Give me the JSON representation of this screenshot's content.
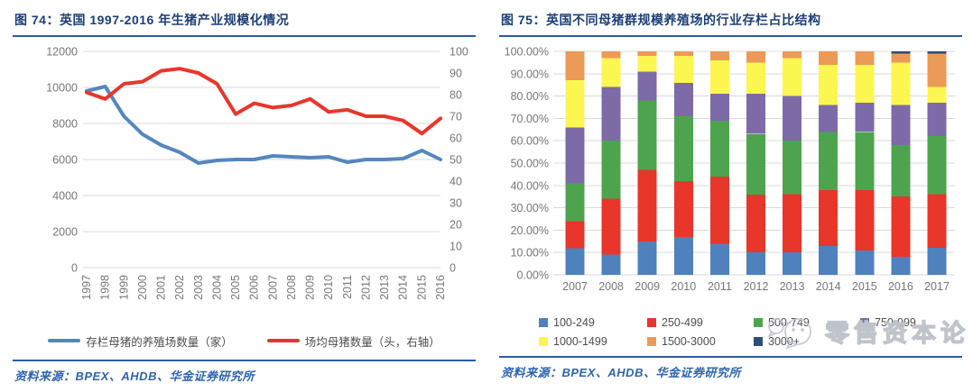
{
  "figure74": {
    "title": "图 74：英国 1997-2016 年生猪产业规模化情况",
    "source": "资料来源：BPEX、AHDB、华金证券研究所",
    "chart_data": {
      "type": "line",
      "x": [
        "1997",
        "1998",
        "1999",
        "2000",
        "2001",
        "2002",
        "2003",
        "2004",
        "2005",
        "2006",
        "2007",
        "2008",
        "2009",
        "2010",
        "2011",
        "2012",
        "2013",
        "2014",
        "2015",
        "2016"
      ],
      "left_ticks": [
        "0",
        "2000",
        "4000",
        "6000",
        "8000",
        "10000",
        "12000"
      ],
      "right_ticks": [
        "0",
        "10",
        "20",
        "30",
        "40",
        "50",
        "60",
        "70",
        "80",
        "90",
        "100"
      ],
      "left_axis": {
        "min": 0,
        "max": 12000
      },
      "right_axis": {
        "min": 0,
        "max": 100
      },
      "grid": true,
      "legend_position": "bottom",
      "series": [
        {
          "name": "存栏母猪的养殖场数量（家）",
          "axis": "left",
          "color": "#5586BE",
          "values": [
            9800,
            10050,
            8400,
            7400,
            6800,
            6400,
            5800,
            5950,
            6000,
            6000,
            6200,
            6150,
            6100,
            6150,
            5850,
            6000,
            6000,
            6050,
            6500,
            6000
          ]
        },
        {
          "name": "场均母猪数量（头，右轴）",
          "axis": "right",
          "color": "#E8362B",
          "values": [
            81,
            78,
            85,
            86,
            91,
            92,
            90,
            85,
            71,
            76,
            74,
            75,
            78,
            72,
            73,
            70,
            70,
            68,
            62,
            69
          ]
        }
      ]
    }
  },
  "figure75": {
    "title": "图 75：英国不同母猪群规模养殖场的行业存栏占比结构",
    "source": "资料来源：BPEX、AHDB、华金证券研究所",
    "chart_data": {
      "type": "bar",
      "stacked": true,
      "percent": true,
      "categories": [
        "2007",
        "2008",
        "2009",
        "2010",
        "2011",
        "2012",
        "2013",
        "2014",
        "2015",
        "2016",
        "2017"
      ],
      "y_ticks": [
        "0.00%",
        "10.00%",
        "20.00%",
        "30.00%",
        "40.00%",
        "50.00%",
        "60.00%",
        "70.00%",
        "80.00%",
        "90.00%",
        "100.00%"
      ],
      "ylim": [
        0,
        100
      ],
      "grid": true,
      "legend_position": "bottom",
      "series": [
        {
          "name": "100-249",
          "color": "#4F81BD",
          "values": [
            12,
            9,
            15,
            17,
            14,
            10,
            10,
            13,
            11,
            8,
            12
          ]
        },
        {
          "name": "250-499",
          "color": "#E8362B",
          "values": [
            12,
            25,
            32,
            25,
            30,
            26,
            26,
            25,
            27,
            27,
            24
          ]
        },
        {
          "name": "500-749",
          "color": "#4EA44E",
          "values": [
            17,
            26,
            31,
            29,
            25,
            27,
            24,
            26,
            26,
            23,
            26
          ]
        },
        {
          "name": "750-999",
          "color": "#7D6BA8",
          "values": [
            25,
            24,
            13,
            15,
            12,
            18,
            20,
            12,
            13,
            18,
            15
          ]
        },
        {
          "name": "1000-1499",
          "color": "#FCF651",
          "values": [
            21,
            13,
            7,
            12,
            15,
            14,
            17,
            18,
            17,
            19,
            7
          ]
        },
        {
          "name": "1500-3000",
          "color": "#EC9A57",
          "values": [
            13,
            3,
            2,
            2,
            4,
            5,
            3,
            6,
            6,
            4,
            15
          ]
        },
        {
          "name": "3000+",
          "color": "#2E4D76",
          "values": [
            0,
            0,
            0,
            0,
            0,
            0,
            0,
            0,
            0,
            1,
            1
          ]
        }
      ]
    }
  },
  "watermark": {
    "text": "零售资本论"
  }
}
